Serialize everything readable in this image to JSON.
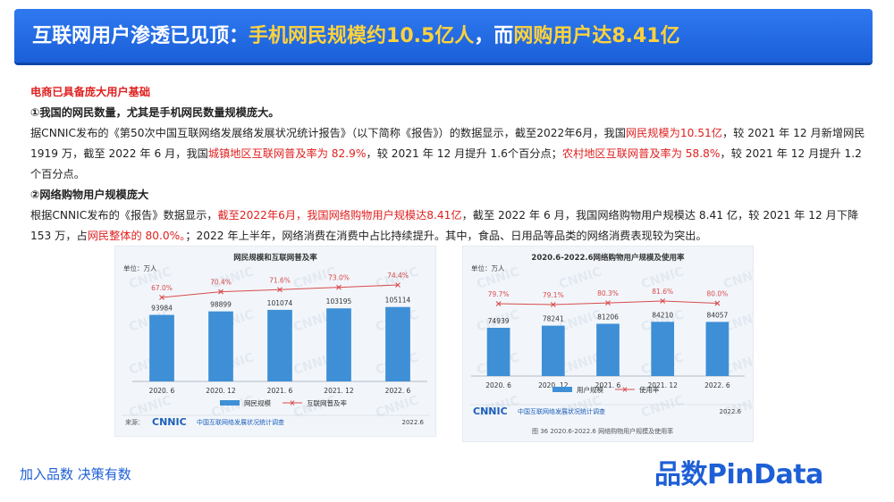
{
  "banner": {
    "title_prefix": "互联网用户渗透已见顶：",
    "title_highlight1": "手机网民规模约10.5亿人",
    "title_mid": "，而",
    "title_highlight2": "网购用户达8.41亿"
  },
  "section_title": "电商已具备庞大用户基础",
  "point1_heading": "①我国的网民数量，尤其是手机网民数量规模庞大。",
  "para1": {
    "t1": "据CNNIC发布的《第50次中国互联网络发展络发展状况统计报告》（以下简称《报告》）的数据显示，截至2022年6月，我国",
    "r1": "网民规模为10.51亿",
    "t2": "，较 2021 年 12 月新增网民 1919 万，截至 2022 年 6 月，我国",
    "r2": "城镇地区互联网普及率为 82.9%",
    "t3": "，较 2021 年 12 月提升 1.6个百分点；",
    "r3": "农村地区互联网普及率为 58.8%",
    "t4": "，较 2021 年 12 月提升 1.2 个百分点。"
  },
  "point2_heading": "②网络购物用户规模庞大",
  "para2": {
    "t1": "根据CNNIC发布的《报告》数据显示，",
    "r1": "截至2022年6月，我国网络购物用户规模达8.41亿",
    "t2": "，截至 2022 年 6 月，我国网络购物用户规模达 8.41 亿，较 2021 年 12 月下降 153 万，占",
    "r2": "网民整体的 80.0%。",
    "t3": "；2022 年上半年，网络消费在消费中占比持续提升。其中，食品、日用品等品类的网络消费表现较为突出。"
  },
  "chart_data": [
    {
      "type": "bar",
      "title": "网民规模和互联网普及率",
      "unit_label": "单位：万人",
      "categories": [
        "2020. 6",
        "2020. 12",
        "2021. 6",
        "2021. 12",
        "2022. 6"
      ],
      "series": [
        {
          "name": "网民规模",
          "type": "bar",
          "values": [
            93984,
            98899,
            101074,
            103195,
            105114
          ]
        },
        {
          "name": "互联网普及率",
          "type": "line",
          "values": [
            67.0,
            70.4,
            71.6,
            73.0,
            74.4
          ],
          "labels": [
            "67.0%",
            "70.4%",
            "71.6%",
            "73.0%",
            "74.4%"
          ]
        }
      ],
      "source": "来源：",
      "source_logo": "CNNIC",
      "source_text": "中国互联网络发展状况统计调查",
      "date": "2022.6",
      "legend": "bottom",
      "colors": {
        "bar": "#3e8fd6",
        "line": "#d94b4b"
      }
    },
    {
      "type": "bar",
      "title": "2020.6-2022.6网络购物用户规模及使用率",
      "unit_label": "单位：万人",
      "categories": [
        "2020. 6",
        "2020. 12",
        "2021. 6",
        "2021. 12",
        "2022. 6"
      ],
      "series": [
        {
          "name": "用户规模",
          "type": "bar",
          "values": [
            74939,
            78241,
            81206,
            84210,
            84057
          ]
        },
        {
          "name": "使用率",
          "type": "line",
          "values": [
            79.7,
            79.1,
            80.3,
            81.6,
            80.0
          ],
          "labels": [
            "79.7%",
            "79.1%",
            "80.3%",
            "81.6%",
            "80.0%"
          ]
        }
      ],
      "source_logo": "CNNIC",
      "source_text": "中国互联网络发展状况统计调查",
      "date": "2022.6",
      "caption": "图 36  2020.6-2022.6 网络购物用户规模及使用率",
      "legend": "bottom",
      "colors": {
        "bar": "#3e8fd6",
        "line": "#d94b4b"
      }
    }
  ],
  "footer": {
    "slogan": "加入品数 决策有数",
    "brand": "品数PinData"
  },
  "colors": {
    "brand": "#1e5fd6",
    "highlight": "#ffd23c",
    "emphasis": "#e02020"
  }
}
